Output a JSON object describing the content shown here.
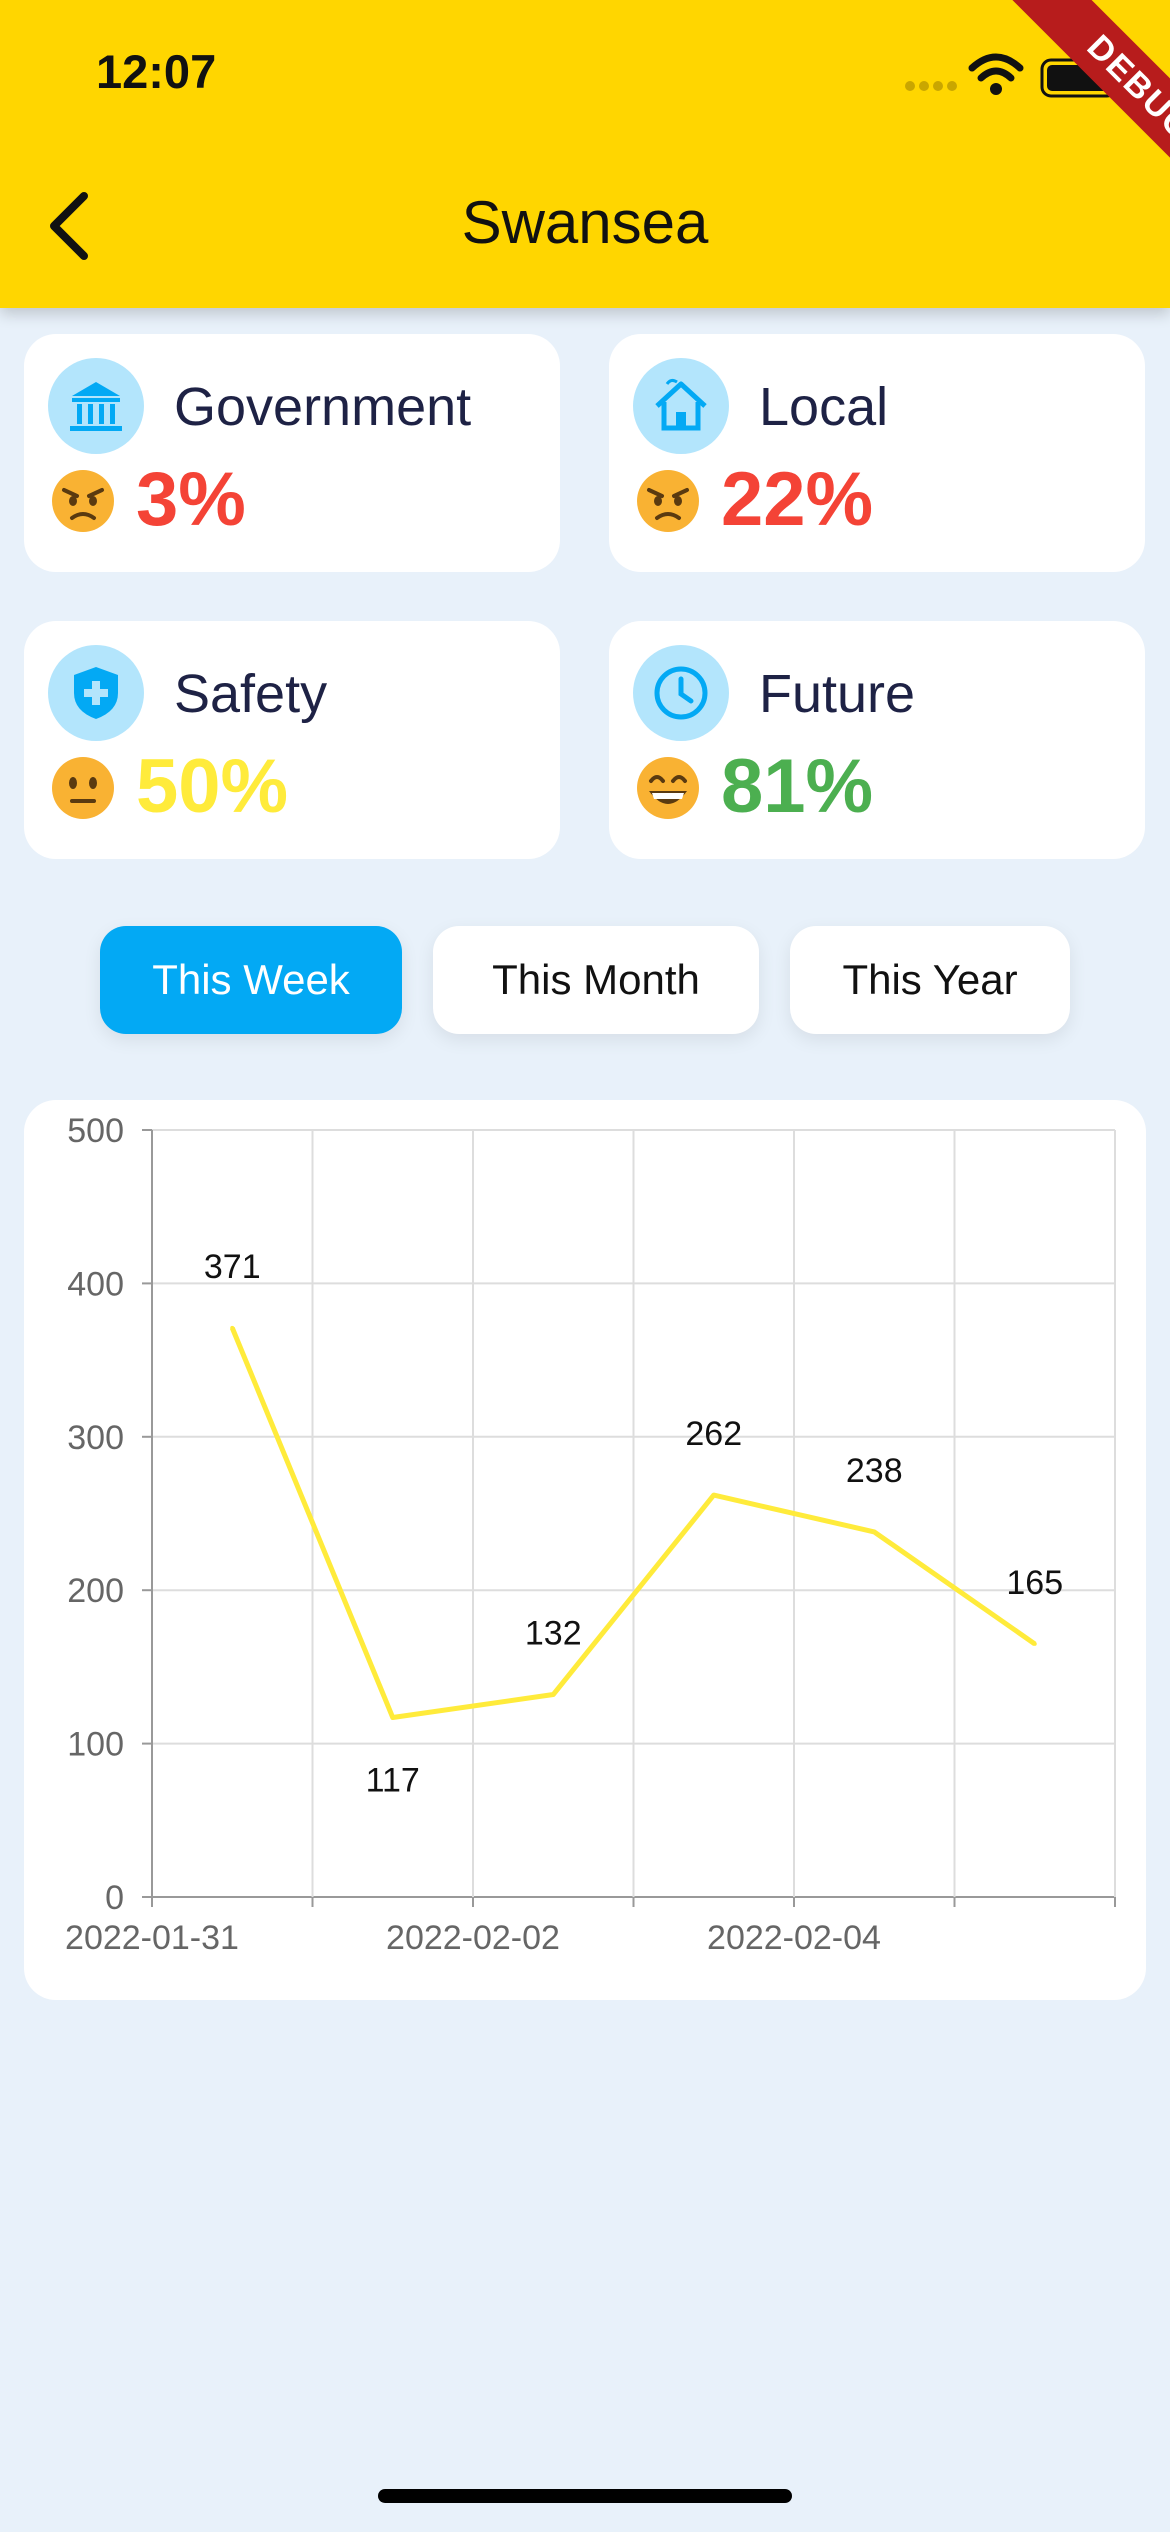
{
  "status_bar": {
    "time": "12:07"
  },
  "debug_banner": "DEBUG",
  "header": {
    "title": "Swansea",
    "back_icon": "chevron-left-icon"
  },
  "cards": [
    {
      "label": "Government",
      "icon": "bank-icon",
      "emoji": "angry-face",
      "value": "3%",
      "color": "#f44336"
    },
    {
      "label": "Local",
      "icon": "house-icon",
      "emoji": "angry-face",
      "value": "22%",
      "color": "#f44336"
    },
    {
      "label": "Safety",
      "icon": "shield-plus-icon",
      "emoji": "neutral-face",
      "value": "50%",
      "color": "#ffeb3b"
    },
    {
      "label": "Future",
      "icon": "clock-icon",
      "emoji": "grinning-face",
      "value": "81%",
      "color": "#4caf50"
    }
  ],
  "tabs": [
    {
      "label": "This Week",
      "active": true
    },
    {
      "label": "This Month",
      "active": false
    },
    {
      "label": "This Year",
      "active": false
    }
  ],
  "colors": {
    "accent": "#03a9f4",
    "header": "#ffd600",
    "line": "#ffeb3b"
  },
  "chart_data": {
    "type": "line",
    "x": [
      "2022-01-31",
      "2022-02-01",
      "2022-02-02",
      "2022-02-03",
      "2022-02-04",
      "2022-02-05"
    ],
    "values": [
      371,
      117,
      132,
      262,
      238,
      165
    ],
    "x_tick_labels": [
      "2022-01-31",
      "2022-02-02",
      "2022-02-04"
    ],
    "y_ticks": [
      0,
      100,
      200,
      300,
      400,
      500
    ],
    "ylim": [
      0,
      500
    ],
    "grid": true,
    "data_labels": true
  }
}
